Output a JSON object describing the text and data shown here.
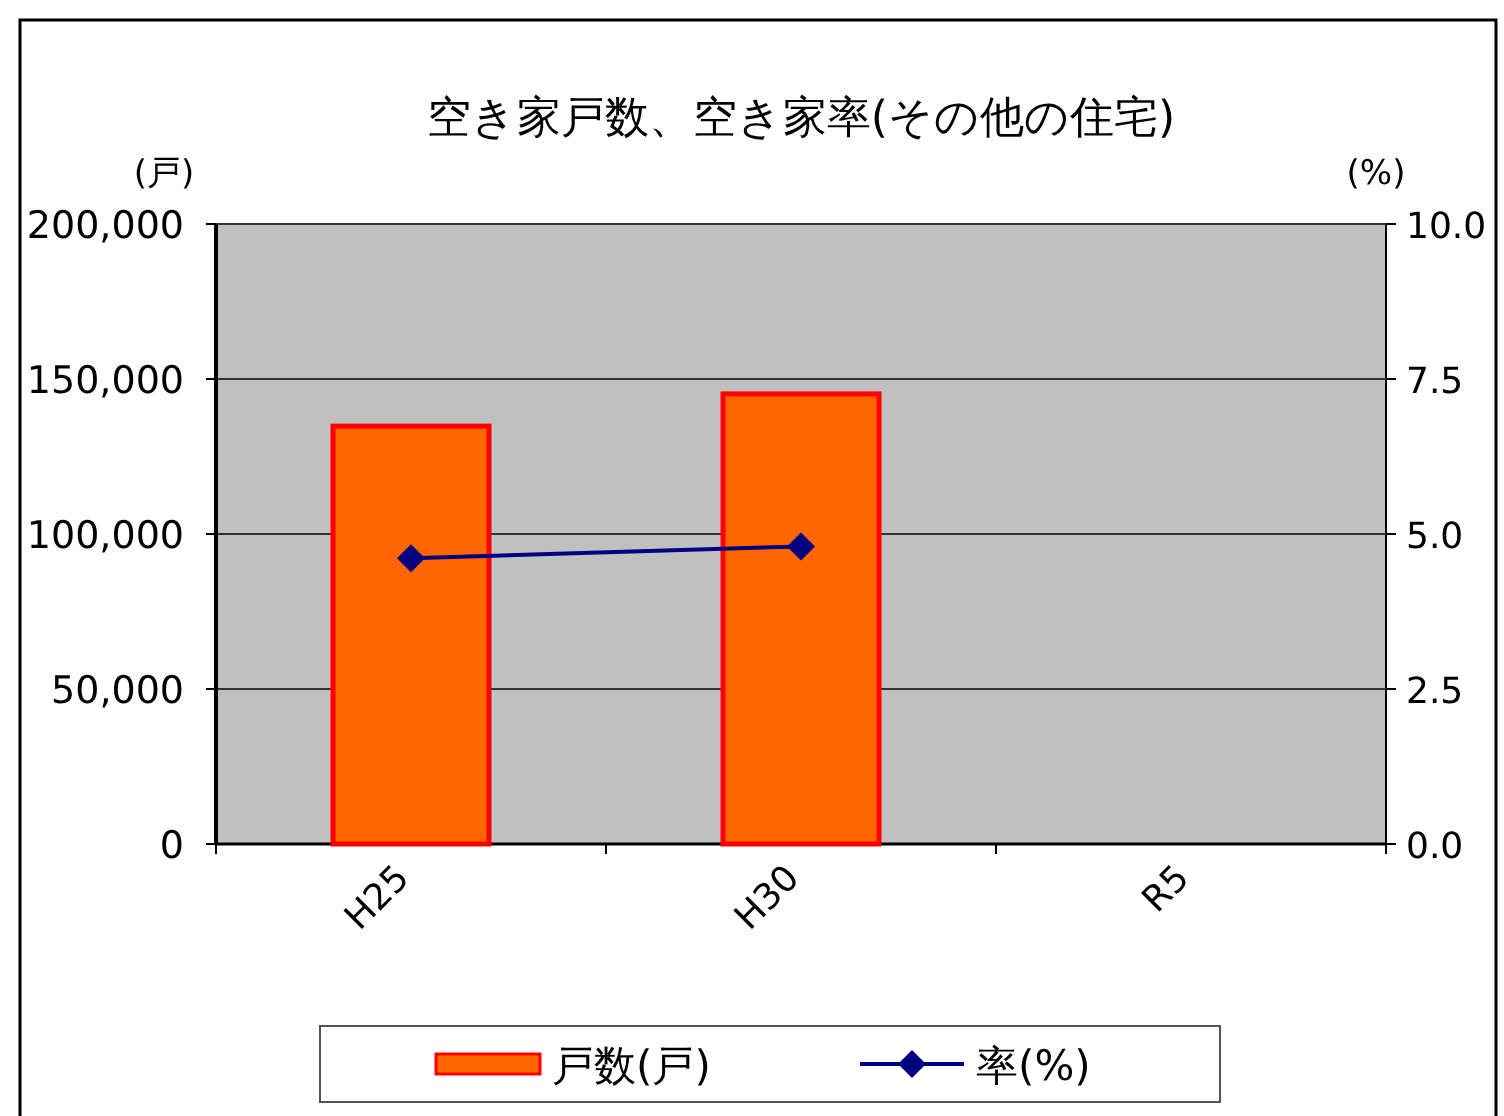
{
  "chart_data": {
    "type": "bar",
    "title": "空き家戸数、空き家率(その他の住宅)",
    "ylabel": "(戸)",
    "y2label": "(%)",
    "categories": [
      "H25",
      "H30",
      "R5"
    ],
    "series": [
      {
        "name": "戸数(戸)",
        "color": "#ff6600",
        "values": [
          134800,
          145200,
          null
        ]
      },
      {
        "name": "率(%)",
        "type": "line",
        "axis": "y2",
        "color": "#000080",
        "values": [
          4.61,
          4.8,
          null
        ]
      }
    ],
    "ylim": [
      0,
      200000
    ],
    "yticks": [
      {
        "value": 0,
        "label": "0"
      },
      {
        "value": 50000,
        "label": "50,000"
      },
      {
        "value": 100000,
        "label": "100,000"
      },
      {
        "value": 150000,
        "label": "150,000"
      },
      {
        "value": 200000,
        "label": "200,000"
      }
    ],
    "y2lim": [
      0,
      10
    ],
    "y2ticks": [
      {
        "value": 0,
        "label": "0.0"
      },
      {
        "value": 2.5,
        "label": "2.5"
      },
      {
        "value": 5,
        "label": "5.0"
      },
      {
        "value": 7.5,
        "label": "7.5"
      },
      {
        "value": 10,
        "label": "10.0"
      }
    ],
    "grid": "y",
    "legend": "bottom",
    "marker": "diamond"
  }
}
